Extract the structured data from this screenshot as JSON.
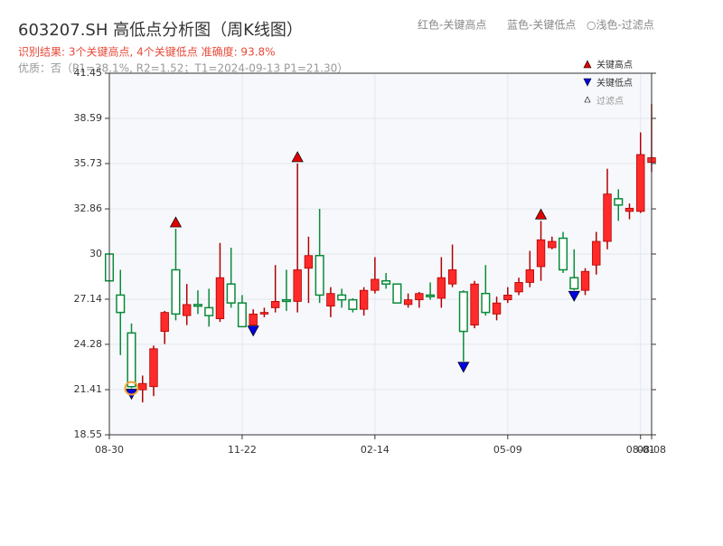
{
  "chart_data": {
    "type": "candlestick",
    "title": "603207.SH 高低点分析图（周K线图）",
    "subtitle": "识别结果: 3个关键高点, 4个关键低点  准确度: 93.8%",
    "note": "优质：否（P1=38.1%, R2=1.52；T1=2024-09-13 P1=21.30）",
    "top_legend": [
      "红色-关键高点",
      "蓝色-关键低点",
      "○浅色-过滤点"
    ],
    "legend": [
      "关键高点",
      "关键低点",
      "过滤点"
    ],
    "categories": [
      "08-30",
      null,
      null,
      null,
      null,
      null,
      null,
      null,
      null,
      null,
      null,
      null,
      "11-22",
      null,
      null,
      null,
      null,
      null,
      null,
      null,
      null,
      null,
      null,
      null,
      "02-14",
      null,
      null,
      null,
      null,
      null,
      null,
      null,
      null,
      null,
      null,
      null,
      "05-09",
      null,
      null,
      null,
      null,
      null,
      null,
      null,
      null,
      null,
      null,
      null,
      "08-01",
      "08-08"
    ],
    "open": [
      30.0,
      27.4,
      25.0,
      21.4,
      21.6,
      25.1,
      29.0,
      26.1,
      26.8,
      26.6,
      25.9,
      28.1,
      26.9,
      25.5,
      26.2,
      26.6,
      27.1,
      27.0,
      29.1,
      29.9,
      26.7,
      27.4,
      27.1,
      26.5,
      27.7,
      28.3,
      28.1,
      26.8,
      27.1,
      27.4,
      27.2,
      28.1,
      27.6,
      25.5,
      27.5,
      26.2,
      27.1,
      27.6,
      28.2,
      29.2,
      30.4,
      31.0,
      28.5,
      27.7,
      29.3,
      30.8,
      33.5,
      32.7,
      32.7,
      35.8
    ],
    "high": [
      30.0,
      29.0,
      25.6,
      22.3,
      24.2,
      26.4,
      31.6,
      28.1,
      27.7,
      27.8,
      30.7,
      30.4,
      27.4,
      26.5,
      26.6,
      29.3,
      29.0,
      35.73,
      31.1,
      32.86,
      27.9,
      27.8,
      27.2,
      27.9,
      29.8,
      28.8,
      28.1,
      27.5,
      27.6,
      28.2,
      29.8,
      30.6,
      27.7,
      28.3,
      29.3,
      27.3,
      27.9,
      28.5,
      30.2,
      32.1,
      31.1,
      31.4,
      30.3,
      29.1,
      31.4,
      35.4,
      34.1,
      33.2,
      37.7,
      39.5
    ],
    "low": [
      28.3,
      23.6,
      21.5,
      20.6,
      21.0,
      24.3,
      25.8,
      25.5,
      26.2,
      25.4,
      25.7,
      26.6,
      25.4,
      25.5,
      26.0,
      26.3,
      26.4,
      26.3,
      26.9,
      26.9,
      26.0,
      26.6,
      26.3,
      26.1,
      27.5,
      27.8,
      26.9,
      26.6,
      26.6,
      27.1,
      26.6,
      27.9,
      23.2,
      25.3,
      26.1,
      25.8,
      26.9,
      27.4,
      27.9,
      28.3,
      30.3,
      28.8,
      27.7,
      27.4,
      28.7,
      30.3,
      32.1,
      32.2,
      32.6,
      35.2
    ],
    "close": [
      28.3,
      26.3,
      21.6,
      21.8,
      24.0,
      26.3,
      26.2,
      26.8,
      26.7,
      26.1,
      28.5,
      26.9,
      25.4,
      26.2,
      26.3,
      27.0,
      27.0,
      29.0,
      29.9,
      27.4,
      27.5,
      27.1,
      26.5,
      27.7,
      28.4,
      28.1,
      26.9,
      27.1,
      27.5,
      27.3,
      28.5,
      29.0,
      25.1,
      28.1,
      26.3,
      26.9,
      27.4,
      28.2,
      29.0,
      30.9,
      30.8,
      29.0,
      27.8,
      28.9,
      30.8,
      33.8,
      33.1,
      32.9,
      36.3,
      36.1
    ],
    "key_highs": [
      6,
      17,
      39
    ],
    "key_lows": [
      2,
      13,
      32,
      42
    ],
    "filtered": [
      2
    ],
    "up_color": "#ff2a2a",
    "down_color": "#0a8a3a",
    "high_color": "#e00000",
    "low_color": "#0000e0",
    "filtered_color": "#f0a030",
    "ylim": [
      18.55,
      41.45
    ],
    "yticks": [
      18.55,
      21.41,
      24.28,
      27.14,
      30.0,
      32.86,
      35.73,
      38.59,
      41.45
    ],
    "grid": true
  }
}
